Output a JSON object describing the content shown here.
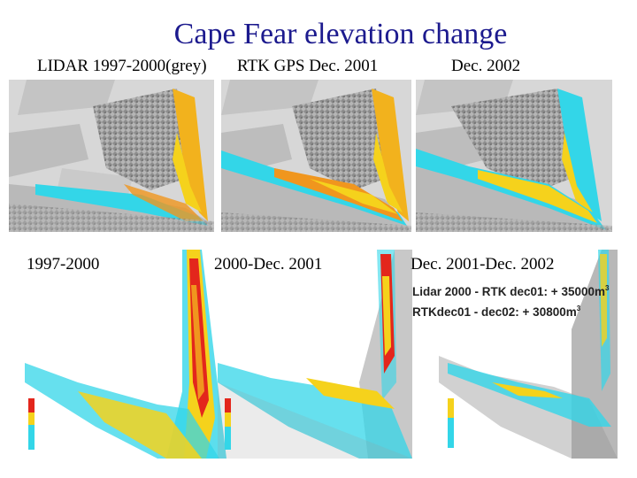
{
  "title": "Cape Fear elevation change",
  "top_labels": {
    "lidar": "LIDAR 1997-2000(grey)",
    "rtk": "RTK GPS Dec. 2001",
    "dec2002": "Dec. 2002"
  },
  "bottom_labels": {
    "p1": "1997-2000",
    "p2": "2000-Dec. 2001",
    "p3": "Dec. 2001-Dec. 2002"
  },
  "volume_changes": {
    "line1_text": "Lidar 2000 - RTK dec01:  + 35000m",
    "line2_text": "RTKdec01 - dec02: + 30800m",
    "unit_superscript": "3"
  },
  "colors": {
    "title": "#1c1a8e",
    "cyan": "#33d6e8",
    "yellow": "#f5d21c",
    "orange": "#f0961e",
    "red": "#e3261c",
    "grey_terrain": "#9a9a9a"
  }
}
